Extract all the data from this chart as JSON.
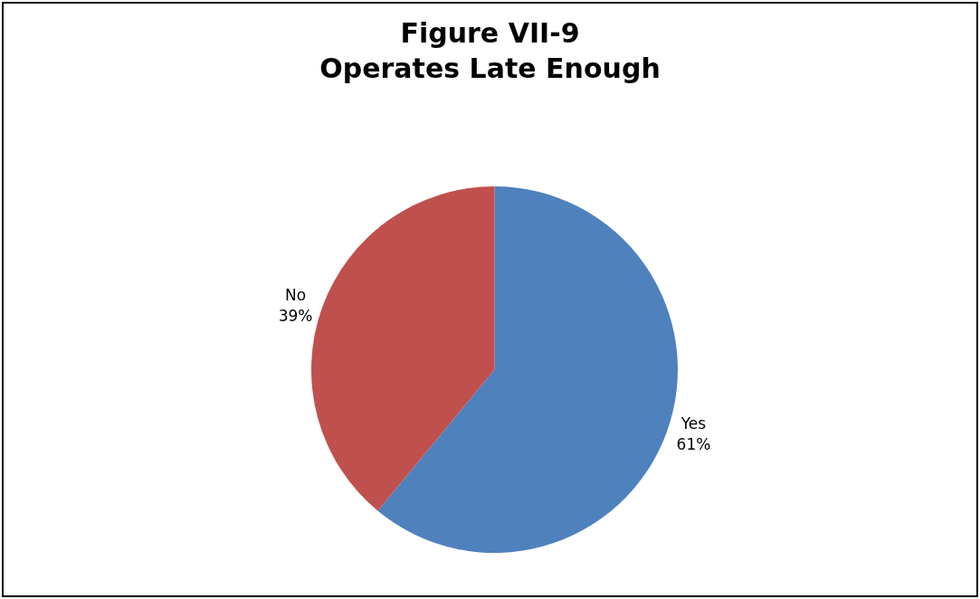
{
  "chart_data": {
    "type": "pie",
    "title": "Figure VII-9\nOperates Late Enough",
    "categories": [
      "Yes",
      "No"
    ],
    "values": [
      61,
      39
    ],
    "value_labels": [
      "61%",
      "39%"
    ],
    "colors": [
      "#4f81bd",
      "#c0504d"
    ],
    "legend": false
  }
}
